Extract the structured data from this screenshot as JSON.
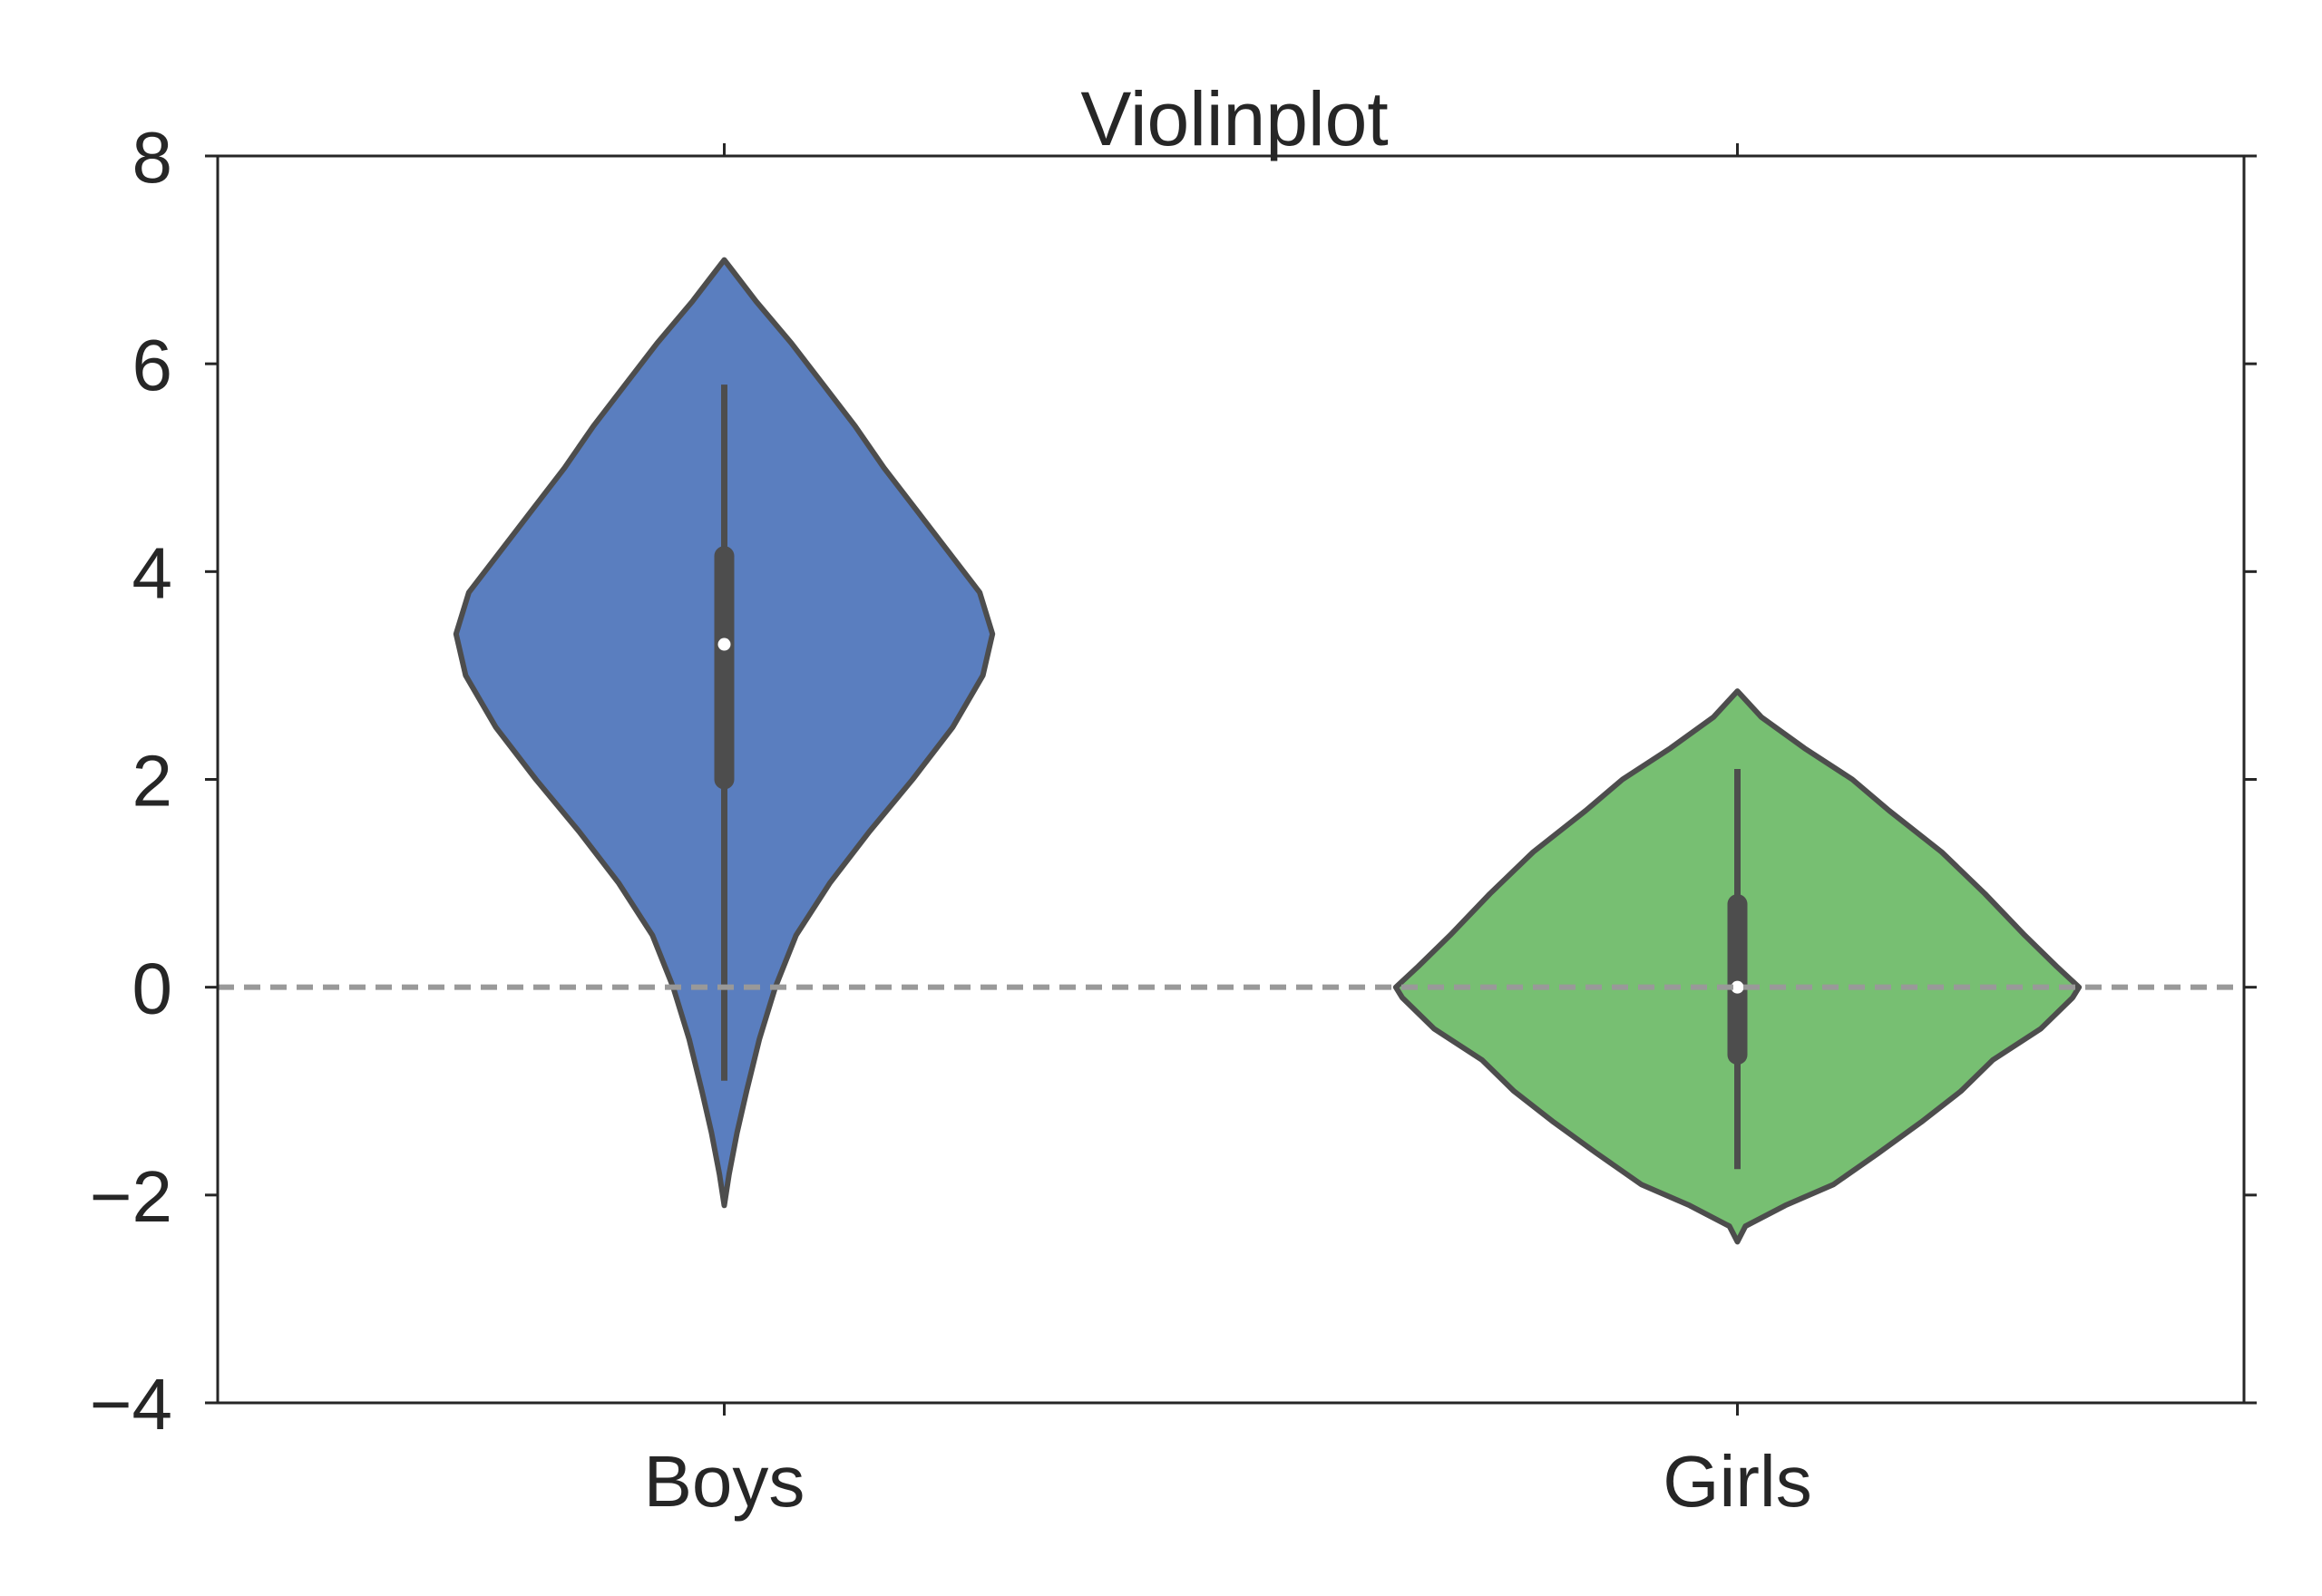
{
  "chart_data": {
    "type": "violin",
    "title": "Violinplot",
    "xlabel": "",
    "ylabel": "",
    "categories": [
      "Boys",
      "Girls"
    ],
    "ylim": [
      -4,
      8
    ],
    "yticks": [
      "8",
      "6",
      "4",
      "2",
      "0",
      "−2",
      "−4"
    ],
    "ytick_values": [
      8,
      6,
      4,
      2,
      0,
      -2,
      -4
    ],
    "reference_line": {
      "y": 0,
      "style": "dashed",
      "color": "#999999"
    },
    "grid": false,
    "series": [
      {
        "category": "Boys",
        "color": "#5a7ebf",
        "range": [
          -2.1,
          7.0
        ],
        "whisker": [
          -0.9,
          5.8
        ],
        "quartiles": [
          2.0,
          4.15
        ],
        "median": 3.3,
        "density": [
          [
            -2.1,
            0.0
          ],
          [
            -1.8,
            0.03
          ],
          [
            -1.4,
            0.08
          ],
          [
            -1.0,
            0.14
          ],
          [
            -0.5,
            0.22
          ],
          [
            0.0,
            0.32
          ],
          [
            0.5,
            0.45
          ],
          [
            1.0,
            0.66
          ],
          [
            1.5,
            0.91
          ],
          [
            2.0,
            1.18
          ],
          [
            2.5,
            1.43
          ],
          [
            3.0,
            1.62
          ],
          [
            3.4,
            1.68
          ],
          [
            3.8,
            1.6
          ],
          [
            4.2,
            1.4
          ],
          [
            4.6,
            1.2
          ],
          [
            5.0,
            1.0
          ],
          [
            5.4,
            0.82
          ],
          [
            5.8,
            0.62
          ],
          [
            6.2,
            0.42
          ],
          [
            6.6,
            0.2
          ],
          [
            6.9,
            0.05
          ],
          [
            7.0,
            0.0
          ]
        ]
      },
      {
        "category": "Girls",
        "color": "#77bf72",
        "range": [
          -2.45,
          2.85
        ],
        "whisker": [
          -1.75,
          2.1
        ],
        "quartiles": [
          -0.65,
          0.8
        ],
        "median": 0.0,
        "density": [
          [
            -2.45,
            0.0
          ],
          [
            -2.3,
            0.05
          ],
          [
            -2.1,
            0.3
          ],
          [
            -1.9,
            0.6
          ],
          [
            -1.6,
            0.88
          ],
          [
            -1.3,
            1.15
          ],
          [
            -1.0,
            1.4
          ],
          [
            -0.7,
            1.6
          ],
          [
            -0.4,
            1.9
          ],
          [
            -0.1,
            2.1
          ],
          [
            0.0,
            2.14
          ],
          [
            0.2,
            2.0
          ],
          [
            0.5,
            1.8
          ],
          [
            0.9,
            1.55
          ],
          [
            1.3,
            1.28
          ],
          [
            1.7,
            0.95
          ],
          [
            2.0,
            0.72
          ],
          [
            2.3,
            0.42
          ],
          [
            2.6,
            0.15
          ],
          [
            2.85,
            0.0
          ]
        ]
      }
    ]
  }
}
